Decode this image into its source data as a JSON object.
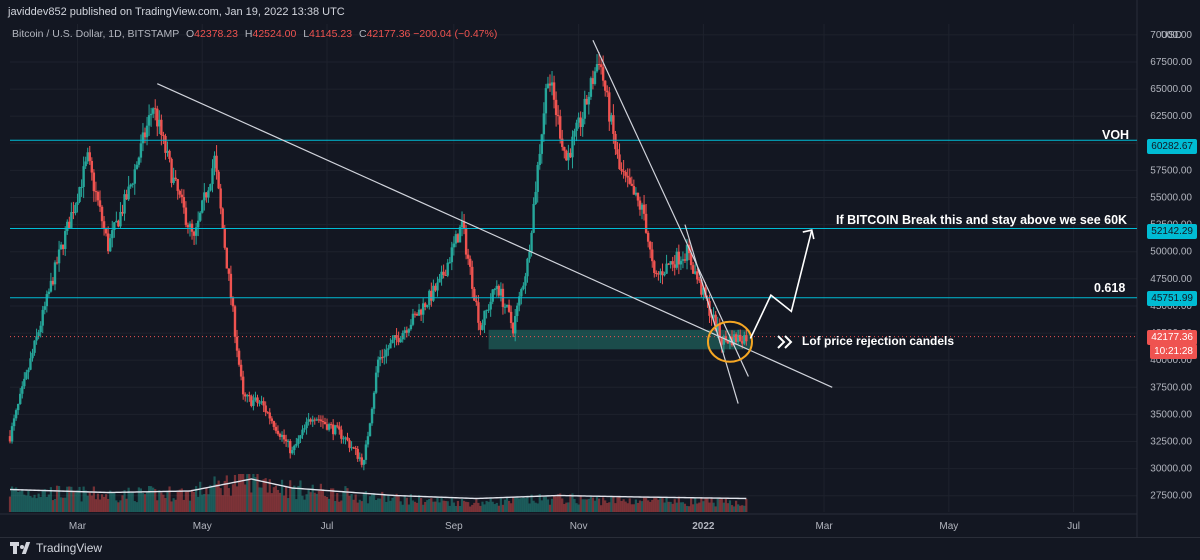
{
  "header": {
    "text": "javiddev852 published on TradingView.com, Jan 19, 2022 13:38 UTC"
  },
  "symbol": {
    "name": "Bitcoin / U.S. Dollar, 1D, BITSTAMP",
    "o_label": "O",
    "o": "42378.23",
    "h_label": "H",
    "h": "42524.00",
    "l_label": "L",
    "l": "41145.23",
    "c_label": "C",
    "c": "42177.36",
    "change": "−200.04 (−0.47%)"
  },
  "currency": "USD",
  "annotations": {
    "voh": "VOH",
    "break": "If BITCOIN Break this and stay above we see 60K",
    "fib": "0.618",
    "rejection": "Lof price rejection candels"
  },
  "price_tags": {
    "voh": "60282.67",
    "break": "52142.29",
    "fib": "45751.99",
    "last_price": "42177.36",
    "countdown": "10:21:28"
  },
  "footer": {
    "brand": "TradingView"
  },
  "colors": {
    "up": "#26a69a",
    "down": "#ef5350",
    "grid": "#1e222d",
    "bg": "#131722",
    "hline": "#00bcd4",
    "trendline": "#d1d4dc",
    "circle": "#f5a623",
    "zone": "#1f5f5a"
  },
  "chart_data": {
    "type": "candlestick",
    "ylim": [
      26000,
      71000
    ],
    "y_ticks": [
      27500,
      30000,
      32500,
      35000,
      37500,
      40000,
      42500,
      45000,
      47500,
      50000,
      52500,
      55000,
      57500,
      60000,
      62500,
      65000,
      67500,
      70000
    ],
    "y_tick_labels": [
      "27500.00",
      "30000.00",
      "32500.00",
      "35000.00",
      "37500.00",
      "40000.00",
      "42500.00",
      "45000.00",
      "47500.00",
      "50000.00",
      "52500.00",
      "55000.00",
      "57500.00",
      "60000.00",
      "62500.00",
      "65000.00",
      "67500.00",
      "70000.00"
    ],
    "x_tick_labels": [
      {
        "label": "Mar",
        "day": 45
      },
      {
        "label": "May",
        "day": 106
      },
      {
        "label": "Jul",
        "day": 167
      },
      {
        "label": "Sep",
        "day": 229
      },
      {
        "label": "Nov",
        "day": 290
      },
      {
        "label": "2022",
        "day": 351
      },
      {
        "label": "Mar",
        "day": 410
      },
      {
        "label": "May",
        "day": 471
      },
      {
        "label": "Jul",
        "day": 532
      }
    ],
    "x_range_days": [
      12,
      563
    ],
    "horizontal_lines": [
      {
        "price": 60282.67,
        "label": "VOH"
      },
      {
        "price": 52142.29,
        "label": "If BITCOIN Break this and stay above we see 60K"
      },
      {
        "price": 45751.99,
        "label": "0.618"
      }
    ],
    "last_price": 42177.36,
    "support_zone": {
      "day_start": 246,
      "day_end": 374,
      "price_low": 41000,
      "price_high": 42800
    },
    "trendlines": [
      {
        "from": [
          84,
          65500
        ],
        "to": [
          414,
          37500
        ]
      },
      {
        "from": [
          297,
          69500
        ],
        "to": [
          373,
          38500
        ]
      },
      {
        "from": [
          342,
          52500
        ],
        "to": [
          368,
          36000
        ]
      }
    ],
    "projection_path": [
      [
        374,
        42000
      ],
      [
        384,
        46000
      ],
      [
        394,
        44500
      ],
      [
        404,
        52000
      ]
    ],
    "anchors": [
      [
        12,
        33000
      ],
      [
        20,
        38500
      ],
      [
        35,
        49000
      ],
      [
        50,
        58500
      ],
      [
        60,
        50500
      ],
      [
        70,
        55500
      ],
      [
        82,
        63500
      ],
      [
        92,
        56500
      ],
      [
        102,
        51000
      ],
      [
        112,
        58500
      ],
      [
        118,
        49000
      ],
      [
        126,
        36500
      ],
      [
        135,
        36000
      ],
      [
        150,
        31500
      ],
      [
        160,
        35000
      ],
      [
        175,
        33000
      ],
      [
        185,
        30500
      ],
      [
        192,
        40000
      ],
      [
        210,
        44000
      ],
      [
        222,
        47000
      ],
      [
        233,
        52500
      ],
      [
        242,
        43000
      ],
      [
        250,
        47000
      ],
      [
        258,
        43000
      ],
      [
        265,
        49000
      ],
      [
        275,
        66500
      ],
      [
        284,
        58500
      ],
      [
        292,
        62500
      ],
      [
        300,
        68000
      ],
      [
        310,
        57500
      ],
      [
        322,
        53500
      ],
      [
        327,
        47500
      ],
      [
        335,
        49000
      ],
      [
        343,
        50000
      ],
      [
        350,
        46500
      ],
      [
        360,
        41800
      ],
      [
        372,
        42177
      ]
    ],
    "volume_anchors": [
      [
        12,
        0.55
      ],
      [
        60,
        0.45
      ],
      [
        100,
        0.5
      ],
      [
        130,
        0.9
      ],
      [
        150,
        0.6
      ],
      [
        200,
        0.35
      ],
      [
        240,
        0.25
      ],
      [
        280,
        0.35
      ],
      [
        320,
        0.3
      ],
      [
        372,
        0.25
      ]
    ]
  }
}
